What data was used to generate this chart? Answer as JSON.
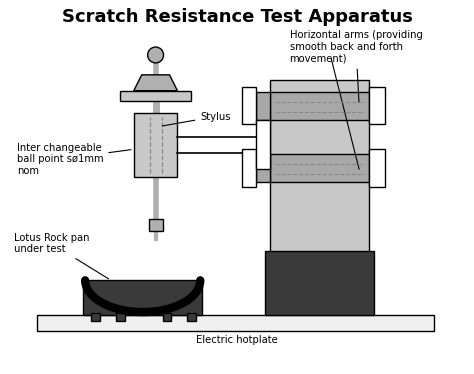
{
  "title": "Scratch Resistance Test Apparatus",
  "title_fontsize": 13,
  "title_fontweight": "bold",
  "bg_color": "#ffffff",
  "label_fontsize": 7.2,
  "colors": {
    "light_gray": "#c8c8c8",
    "mid_gray": "#b0b0b0",
    "dark_gray": "#3a3a3a",
    "black": "#000000",
    "white": "#ffffff",
    "hotplate": "#f0f0f0",
    "dashed": "#888888",
    "arm_gray": "#a8a8a8"
  },
  "labels": {
    "stylus": "Stylus",
    "inter_changeable": "Inter changeable\nball point sø1mm\nnom",
    "lotus": "Lotus Rock pan\nunder test",
    "electric": "Electric hotplate",
    "horizontal": "Horizontal arms (providing\nsmooth back and forth\nmovement)"
  }
}
